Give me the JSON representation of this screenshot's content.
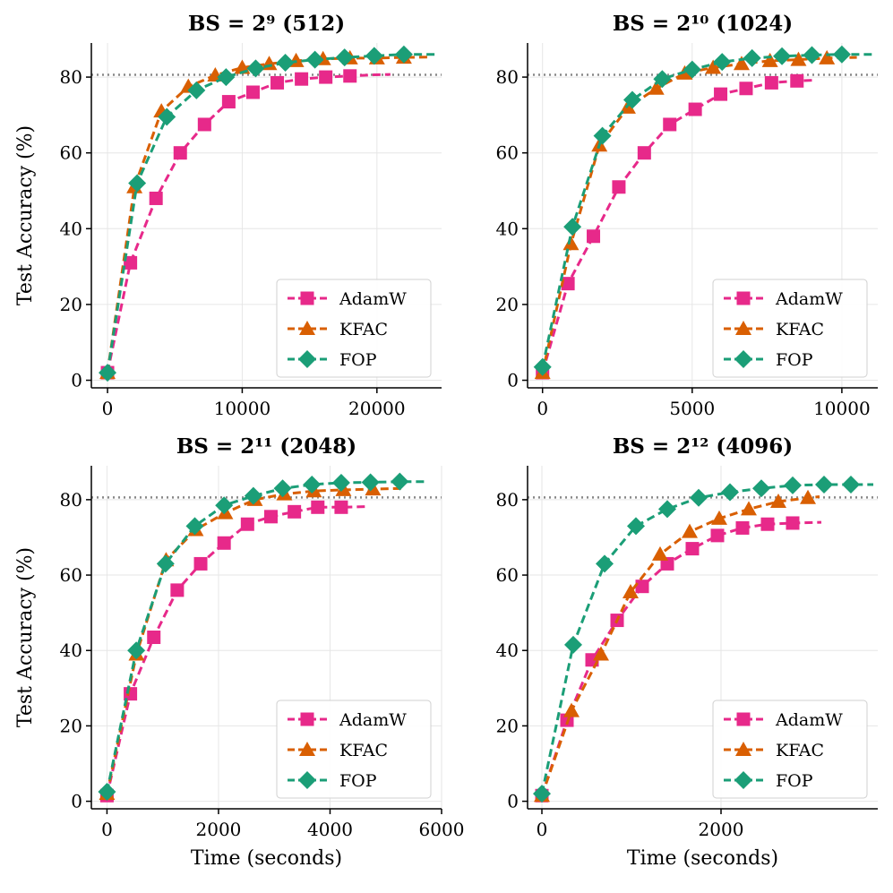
{
  "colors": {
    "AdamW": "#e7298a",
    "KFAC": "#d95f02",
    "FOP": "#1b9e77",
    "reference": "#888888",
    "grid": "#e6e6e6"
  },
  "markers": {
    "AdamW": "square",
    "KFAC": "triangle",
    "FOP": "diamond"
  },
  "chart_data": [
    {
      "type": "line",
      "title": "BS = 2⁹ (512)",
      "xlabel": "",
      "ylabel": "Test Accuracy (%)",
      "xlim": [
        -1200,
        24800
      ],
      "ylim": [
        -2,
        89
      ],
      "xticks": [
        0,
        10000,
        20000
      ],
      "yticks": [
        0,
        20,
        40,
        60,
        80
      ],
      "reference_y": 80.6,
      "grid": true,
      "legend": "lower-right",
      "series": [
        {
          "name": "AdamW",
          "points": [
            [
              0,
              2
            ],
            [
              1700,
              31
            ],
            [
              3600,
              48
            ],
            [
              5400,
              60
            ],
            [
              7200,
              67.5
            ],
            [
              9000,
              73.5
            ],
            [
              10800,
              76
            ],
            [
              12600,
              78.5
            ],
            [
              14400,
              79.5
            ],
            [
              16200,
              80
            ],
            [
              18000,
              80.3
            ],
            [
              19800,
              80.6
            ],
            [
              21000,
              80.7
            ]
          ],
          "marker_indices": [
            0,
            1,
            2,
            3,
            4,
            5,
            6,
            7,
            8,
            9,
            10
          ]
        },
        {
          "name": "KFAC",
          "points": [
            [
              0,
              2
            ],
            [
              2000,
              51
            ],
            [
              4000,
              71
            ],
            [
              6000,
              77.5
            ],
            [
              8000,
              80.5
            ],
            [
              10000,
              82.5
            ],
            [
              12000,
              83.5
            ],
            [
              14000,
              84.3
            ],
            [
              16000,
              84.8
            ],
            [
              18000,
              85
            ],
            [
              20000,
              85
            ],
            [
              22000,
              85.2
            ],
            [
              24000,
              85.3
            ]
          ],
          "marker_indices": [
            0,
            1,
            2,
            3,
            4,
            5,
            6,
            7,
            8,
            9,
            10,
            11
          ]
        },
        {
          "name": "FOP",
          "points": [
            [
              0,
              2
            ],
            [
              2200,
              52
            ],
            [
              4400,
              69.5
            ],
            [
              6600,
              76.5
            ],
            [
              8800,
              80
            ],
            [
              11000,
              82.3
            ],
            [
              13200,
              83.8
            ],
            [
              15400,
              84.6
            ],
            [
              17600,
              85.2
            ],
            [
              19800,
              85.6
            ],
            [
              22000,
              86
            ],
            [
              24400,
              86
            ]
          ],
          "marker_indices": [
            0,
            1,
            2,
            3,
            4,
            5,
            6,
            7,
            8,
            9,
            10
          ]
        }
      ]
    },
    {
      "type": "line",
      "title": "BS = 2¹⁰ (1024)",
      "xlabel": "",
      "ylabel": "",
      "xlim": [
        -500,
        11200
      ],
      "ylim": [
        -2,
        89
      ],
      "xticks": [
        0,
        5000,
        10000
      ],
      "yticks": [
        0,
        20,
        40,
        60,
        80
      ],
      "reference_y": 80.6,
      "grid": true,
      "legend": "lower-right",
      "series": [
        {
          "name": "AdamW",
          "points": [
            [
              0,
              2
            ],
            [
              850,
              25.5
            ],
            [
              1700,
              38
            ],
            [
              2550,
              51
            ],
            [
              3400,
              60
            ],
            [
              4250,
              67.5
            ],
            [
              5100,
              71.5
            ],
            [
              5950,
              75.5
            ],
            [
              6800,
              77
            ],
            [
              7650,
              78.5
            ],
            [
              8500,
              79
            ],
            [
              9100,
              79.2
            ]
          ],
          "marker_indices": [
            0,
            1,
            2,
            3,
            4,
            5,
            6,
            7,
            8,
            9,
            10
          ]
        },
        {
          "name": "KFAC",
          "points": [
            [
              0,
              2
            ],
            [
              950,
              36
            ],
            [
              1900,
              62
            ],
            [
              2850,
              72
            ],
            [
              3800,
              77
            ],
            [
              4750,
              81
            ],
            [
              5700,
              82.5
            ],
            [
              6650,
              83.5
            ],
            [
              7600,
              84.3
            ],
            [
              8550,
              84.6
            ],
            [
              9500,
              85
            ],
            [
              10500,
              85.2
            ]
          ],
          "marker_indices": [
            0,
            1,
            2,
            3,
            4,
            5,
            6,
            7,
            8,
            9,
            10
          ]
        },
        {
          "name": "FOP",
          "points": [
            [
              0,
              3.5
            ],
            [
              1000,
              40.5
            ],
            [
              2000,
              64.5
            ],
            [
              3000,
              74
            ],
            [
              4000,
              79.5
            ],
            [
              5000,
              82
            ],
            [
              6000,
              84
            ],
            [
              7000,
              85
            ],
            [
              8000,
              85.5
            ],
            [
              9000,
              85.8
            ],
            [
              10000,
              86
            ],
            [
              11000,
              86
            ]
          ],
          "marker_indices": [
            0,
            1,
            2,
            3,
            4,
            5,
            6,
            7,
            8,
            9,
            10
          ]
        }
      ]
    },
    {
      "type": "line",
      "title": "BS = 2¹¹ (2048)",
      "xlabel": "Time (seconds)",
      "ylabel": "Test Accuracy (%)",
      "xlim": [
        -280,
        6000
      ],
      "ylim": [
        -2,
        89
      ],
      "xticks": [
        0,
        2000,
        4000,
        6000
      ],
      "yticks": [
        0,
        20,
        40,
        60,
        80
      ],
      "reference_y": 80.6,
      "grid": true,
      "legend": "lower-right",
      "series": [
        {
          "name": "AdamW",
          "points": [
            [
              0,
              1.5
            ],
            [
              420,
              28.5
            ],
            [
              840,
              43.5
            ],
            [
              1260,
              56
            ],
            [
              1680,
              63
            ],
            [
              2100,
              68.5
            ],
            [
              2520,
              73.5
            ],
            [
              2940,
              75.5
            ],
            [
              3360,
              76.8
            ],
            [
              3780,
              78
            ],
            [
              4200,
              78
            ],
            [
              4700,
              78.2
            ]
          ],
          "marker_indices": [
            0,
            1,
            2,
            3,
            4,
            5,
            6,
            7,
            8,
            9,
            10
          ]
        },
        {
          "name": "KFAC",
          "points": [
            [
              0,
              2
            ],
            [
              530,
              39
            ],
            [
              1060,
              64
            ],
            [
              1590,
              72
            ],
            [
              2120,
              76.5
            ],
            [
              2650,
              80
            ],
            [
              3180,
              81.5
            ],
            [
              3710,
              82.3
            ],
            [
              4240,
              82.6
            ],
            [
              4770,
              82.8
            ],
            [
              5300,
              83
            ]
          ],
          "marker_indices": [
            0,
            1,
            2,
            3,
            4,
            5,
            6,
            7,
            8,
            9
          ]
        },
        {
          "name": "FOP",
          "points": [
            [
              0,
              2.5
            ],
            [
              525,
              40
            ],
            [
              1050,
              63
            ],
            [
              1575,
              73
            ],
            [
              2100,
              78.5
            ],
            [
              2625,
              81
            ],
            [
              3150,
              83
            ],
            [
              3675,
              84
            ],
            [
              4200,
              84.5
            ],
            [
              4725,
              84.6
            ],
            [
              5250,
              84.8
            ],
            [
              5700,
              84.8
            ]
          ],
          "marker_indices": [
            0,
            1,
            2,
            3,
            4,
            5,
            6,
            7,
            8,
            9,
            10
          ]
        }
      ]
    },
    {
      "type": "line",
      "title": "BS = 2¹² (4096)",
      "xlabel": "Time (seconds)",
      "ylabel": "",
      "xlim": [
        -160,
        3750
      ],
      "ylim": [
        -2,
        89
      ],
      "xticks": [
        0,
        2000
      ],
      "yticks": [
        0,
        20,
        40,
        60,
        80
      ],
      "reference_y": 80.6,
      "grid": true,
      "legend": "lower-right",
      "series": [
        {
          "name": "AdamW",
          "points": [
            [
              0,
              1.5
            ],
            [
              280,
              21.5
            ],
            [
              560,
              37.5
            ],
            [
              840,
              48
            ],
            [
              1120,
              57
            ],
            [
              1400,
              63
            ],
            [
              1680,
              67
            ],
            [
              1960,
              70.5
            ],
            [
              2240,
              72.5
            ],
            [
              2520,
              73.5
            ],
            [
              2800,
              73.8
            ],
            [
              3120,
              74
            ]
          ],
          "marker_indices": [
            0,
            1,
            2,
            3,
            4,
            5,
            6,
            7,
            8,
            9,
            10
          ]
        },
        {
          "name": "KFAC",
          "points": [
            [
              0,
              1.5
            ],
            [
              330,
              24
            ],
            [
              660,
              39
            ],
            [
              990,
              55.5
            ],
            [
              1320,
              65.5
            ],
            [
              1650,
              71.5
            ],
            [
              1980,
              75
            ],
            [
              2310,
              77.5
            ],
            [
              2640,
              79.5
            ],
            [
              2970,
              80.5
            ],
            [
              3100,
              80.8
            ]
          ],
          "marker_indices": [
            0,
            1,
            2,
            3,
            4,
            5,
            6,
            7,
            8,
            9
          ]
        },
        {
          "name": "FOP",
          "points": [
            [
              0,
              2
            ],
            [
              350,
              41.5
            ],
            [
              700,
              63
            ],
            [
              1050,
              73
            ],
            [
              1400,
              77.5
            ],
            [
              1750,
              80.5
            ],
            [
              2100,
              82
            ],
            [
              2450,
              83
            ],
            [
              2800,
              83.8
            ],
            [
              3150,
              84
            ],
            [
              3450,
              84
            ],
            [
              3700,
              84
            ]
          ],
          "marker_indices": [
            0,
            1,
            2,
            3,
            4,
            5,
            6,
            7,
            8,
            9,
            10
          ]
        }
      ]
    }
  ]
}
